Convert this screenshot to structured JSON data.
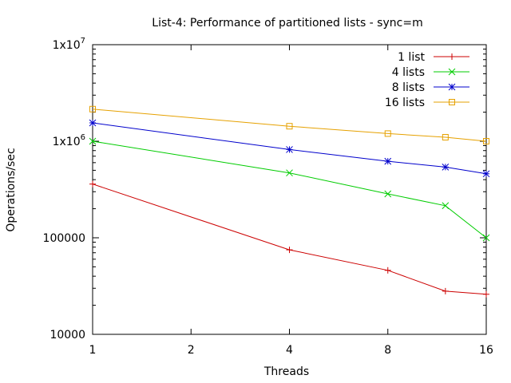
{
  "chart_data": {
    "type": "line",
    "title": "List-4: Performance of partitioned lists - sync=m",
    "xlabel": "Threads",
    "ylabel": "Operations/sec",
    "x_scale": "log2",
    "y_scale": "log10",
    "xlim": [
      1,
      16
    ],
    "ylim": [
      10000,
      10000000
    ],
    "x_ticks": [
      {
        "value": 1,
        "label": "1"
      },
      {
        "value": 2,
        "label": "2"
      },
      {
        "value": 4,
        "label": "4"
      },
      {
        "value": 8,
        "label": "8"
      },
      {
        "value": 16,
        "label": "16"
      }
    ],
    "y_ticks": [
      {
        "value": 10000,
        "label": "10000",
        "base": "",
        "exp": ""
      },
      {
        "value": 100000,
        "label": "100000",
        "base": "",
        "exp": ""
      },
      {
        "value": 1000000,
        "label": "",
        "base": "1x10",
        "exp": "6"
      },
      {
        "value": 10000000,
        "label": "",
        "base": "1x10",
        "exp": "7"
      }
    ],
    "grid": false,
    "legend_position": "top-right",
    "series": [
      {
        "name": "1 list",
        "color": "#cc0000",
        "marker": "plus",
        "points": [
          [
            1,
            360000
          ],
          [
            4,
            75000
          ],
          [
            8,
            46000
          ],
          [
            12,
            28000
          ],
          [
            16,
            26000
          ]
        ]
      },
      {
        "name": "4 lists",
        "color": "#00cc00",
        "marker": "cross",
        "points": [
          [
            1,
            1000000
          ],
          [
            4,
            470000
          ],
          [
            8,
            285000
          ],
          [
            12,
            215000
          ],
          [
            16,
            100000
          ]
        ]
      },
      {
        "name": "8 lists",
        "color": "#0000cc",
        "marker": "star",
        "points": [
          [
            1,
            1550000
          ],
          [
            4,
            820000
          ],
          [
            8,
            620000
          ],
          [
            12,
            540000
          ],
          [
            16,
            460000
          ]
        ]
      },
      {
        "name": "16 lists",
        "color": "#e6a100",
        "marker": "square",
        "points": [
          [
            1,
            2150000
          ],
          [
            4,
            1430000
          ],
          [
            8,
            1200000
          ],
          [
            12,
            1100000
          ],
          [
            16,
            1000000
          ]
        ]
      }
    ]
  }
}
